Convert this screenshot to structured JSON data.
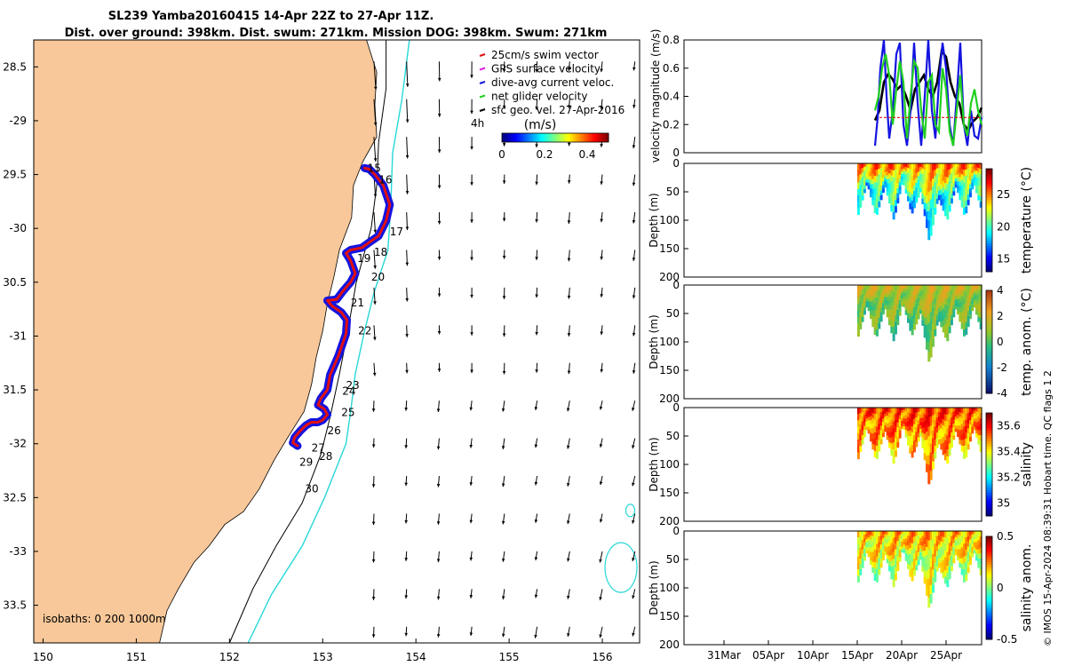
{
  "title": {
    "line1": "SL239 Yamba20160415 14-Apr 22Z to 27-Apr 11Z.",
    "line2": "Dist. over ground: 398km. Dist. swum: 271km. Mission DOG: 398km. Swum: 271km"
  },
  "credit": "© IMOS 15-Apr-2024 08:39:31 Hobart time. QC flags 1  2",
  "colors": {
    "land": "#f8c89a",
    "track_red": "#e01010",
    "track_blue": "#1414e0",
    "isobath_cyan": "#28d7d7",
    "arrow": "#000000"
  },
  "chart_data": [
    {
      "type": "map",
      "name": "glider track map",
      "xlim": [
        149.9,
        156.4
      ],
      "ylim": [
        -33.85,
        -28.25
      ],
      "xticks": [
        150,
        151,
        152,
        153,
        154,
        155,
        156
      ],
      "yticks": [
        -28.5,
        -29,
        -29.5,
        -30,
        -30.5,
        -31,
        -31.5,
        -32,
        -32.5,
        -33,
        -33.5
      ],
      "xtick_labels": [
        "150",
        "151",
        "152",
        "153",
        "154",
        "155",
        "156"
      ],
      "ytick_labels": [
        "28.5",
        "-29",
        "29.5",
        "-30",
        "30.5",
        "-31",
        "31.5",
        "-32",
        "32.5",
        "-33",
        "33.5"
      ],
      "legend": [
        {
          "label": "25cm/s swim vector",
          "color": "#e01010"
        },
        {
          "label": "GPS surface velocity",
          "color": "#e020e0"
        },
        {
          "label": "dive-avg current veloc.",
          "color": "#1414e0"
        },
        {
          "label": "net glider velocity",
          "color": "#20d020"
        },
        {
          "label": "sfc geo. vel. 27-Apr-2016",
          "color": "#000000"
        }
      ],
      "legend_extra": "4h",
      "colorbar": {
        "label": "(m/s)",
        "ticks": [
          0,
          0.2,
          0.4
        ],
        "tick_labels": [
          "0",
          "0.2",
          "0.4"
        ],
        "range": [
          0,
          0.5
        ]
      },
      "isobaths_label": "isobaths: 0   200  1000m",
      "day_markers": [
        {
          "day": "15",
          "lon": 153.48,
          "lat": -29.44
        },
        {
          "day": "16",
          "lon": 153.6,
          "lat": -29.55
        },
        {
          "day": "17",
          "lon": 153.72,
          "lat": -30.03
        },
        {
          "day": "18",
          "lon": 153.55,
          "lat": -30.22
        },
        {
          "day": "19",
          "lon": 153.37,
          "lat": -30.28
        },
        {
          "day": "20",
          "lon": 153.52,
          "lat": -30.45
        },
        {
          "day": "21",
          "lon": 153.3,
          "lat": -30.69
        },
        {
          "day": "22",
          "lon": 153.38,
          "lat": -30.95
        },
        {
          "day": "23",
          "lon": 153.25,
          "lat": -31.46
        },
        {
          "day": "24",
          "lon": 153.21,
          "lat": -31.51
        },
        {
          "day": "25",
          "lon": 153.2,
          "lat": -31.71
        },
        {
          "day": "26",
          "lon": 153.05,
          "lat": -31.88
        },
        {
          "day": "27",
          "lon": 152.88,
          "lat": -32.04
        },
        {
          "day": "28",
          "lon": 152.96,
          "lat": -32.12
        },
        {
          "day": "29",
          "lon": 152.75,
          "lat": -32.17
        },
        {
          "day": "30",
          "lon": 152.81,
          "lat": -32.42
        }
      ],
      "track": [
        [
          153.45,
          -29.44
        ],
        [
          153.5,
          -29.45
        ],
        [
          153.56,
          -29.5
        ],
        [
          153.65,
          -29.6
        ],
        [
          153.72,
          -29.78
        ],
        [
          153.68,
          -29.93
        ],
        [
          153.6,
          -30.07
        ],
        [
          153.5,
          -30.13
        ],
        [
          153.42,
          -30.18
        ],
        [
          153.3,
          -30.2
        ],
        [
          153.25,
          -30.23
        ],
        [
          153.3,
          -30.3
        ],
        [
          153.35,
          -30.42
        ],
        [
          153.3,
          -30.5
        ],
        [
          153.22,
          -30.58
        ],
        [
          153.15,
          -30.66
        ],
        [
          153.05,
          -30.67
        ],
        [
          153.1,
          -30.72
        ],
        [
          153.2,
          -30.78
        ],
        [
          153.26,
          -30.85
        ],
        [
          153.25,
          -30.98
        ],
        [
          153.17,
          -31.18
        ],
        [
          153.08,
          -31.36
        ],
        [
          153.05,
          -31.5
        ],
        [
          152.98,
          -31.58
        ],
        [
          152.95,
          -31.64
        ],
        [
          153.02,
          -31.68
        ],
        [
          153.05,
          -31.73
        ],
        [
          153.0,
          -31.78
        ],
        [
          152.95,
          -31.8
        ],
        [
          152.88,
          -31.8
        ],
        [
          152.82,
          -31.83
        ],
        [
          152.76,
          -31.88
        ],
        [
          152.7,
          -31.94
        ],
        [
          152.68,
          -31.99
        ],
        [
          152.73,
          -32.02
        ]
      ]
    },
    {
      "type": "line",
      "name": "velocity time series",
      "ylabel": "velocity magnitude (m/s)",
      "ylim": [
        0,
        0.8
      ],
      "yticks": [
        0,
        0.2,
        0.4,
        0.6,
        0.8
      ],
      "ytick_labels": [
        "0",
        "0.2",
        "0.4",
        "0.6",
        "0.8"
      ],
      "xlim_day": [
        -19.5,
        14.0
      ],
      "series": [
        {
          "name": "total speed",
          "color": "#000000",
          "x": [
            2.0,
            2.5,
            3.0,
            3.5,
            4.0,
            4.5,
            5.0,
            5.5,
            6.0,
            6.5,
            7.0,
            7.5,
            8.0,
            8.5,
            9.0,
            9.5,
            10.0,
            10.5,
            11.0,
            11.5,
            12.0,
            12.5,
            13.0,
            13.5,
            14.0
          ],
          "y": [
            0.23,
            0.3,
            0.5,
            0.56,
            0.52,
            0.45,
            0.48,
            0.4,
            0.3,
            0.45,
            0.5,
            0.55,
            0.45,
            0.4,
            0.5,
            0.72,
            0.68,
            0.5,
            0.4,
            0.35,
            0.2,
            0.16,
            0.22,
            0.25,
            0.32
          ]
        },
        {
          "name": "dive-avg current",
          "color": "#1414e0",
          "x": [
            2.0,
            2.3,
            2.6,
            3.0,
            3.3,
            3.6,
            4.0,
            4.4,
            4.8,
            5.2,
            5.6,
            6.0,
            6.4,
            6.8,
            7.2,
            7.6,
            8.0,
            8.4,
            8.8,
            9.2,
            9.6,
            10.0,
            10.4,
            10.8,
            11.2,
            11.6,
            12.0,
            12.4,
            12.8,
            13.2,
            13.6,
            14.0
          ],
          "y": [
            0.05,
            0.25,
            0.6,
            0.8,
            0.4,
            0.1,
            0.3,
            0.7,
            0.78,
            0.2,
            0.05,
            0.3,
            0.78,
            0.35,
            0.05,
            0.4,
            0.8,
            0.3,
            0.1,
            0.5,
            0.78,
            0.6,
            0.2,
            0.05,
            0.4,
            0.78,
            0.2,
            0.05,
            0.3,
            0.12,
            0.1,
            0.25
          ]
        },
        {
          "name": "net glider velocity",
          "color": "#20d020",
          "x": [
            2.0,
            2.4,
            2.8,
            3.2,
            3.6,
            4.0,
            4.4,
            4.8,
            5.2,
            5.6,
            6.0,
            6.4,
            6.8,
            7.2,
            7.6,
            8.0,
            8.4,
            8.8,
            9.2,
            9.6,
            10.0,
            10.4,
            10.8,
            11.2,
            11.6,
            12.0,
            12.4,
            12.8,
            13.2,
            13.6,
            14.0
          ],
          "y": [
            0.3,
            0.4,
            0.6,
            0.7,
            0.55,
            0.2,
            0.45,
            0.65,
            0.5,
            0.1,
            0.4,
            0.65,
            0.6,
            0.3,
            0.1,
            0.5,
            0.55,
            0.2,
            0.15,
            0.6,
            0.45,
            0.15,
            0.05,
            0.3,
            0.55,
            0.2,
            0.12,
            0.35,
            0.45,
            0.3,
            0.2
          ]
        },
        {
          "name": "swim vector",
          "color": "#e01010",
          "x": [
            2.5,
            14.0
          ],
          "y": [
            0.25,
            0.25
          ]
        }
      ]
    },
    {
      "type": "heatmap",
      "name": "temperature section",
      "colorbar_label": "temperature (°C)",
      "ylabel": "Depth (m)",
      "ylim": [
        200,
        0
      ],
      "yticks": [
        0,
        50,
        100,
        150,
        200
      ],
      "ytick_labels": [
        "0",
        "50",
        "100",
        "150",
        "200"
      ],
      "clim": [
        13,
        29
      ],
      "colorbar_ticks": [
        15,
        20,
        25
      ],
      "colorbar_tick_labels": [
        "15",
        "20",
        "25"
      ],
      "colorbar_flag": "",
      "profile_depths_m": [
        90,
        35,
        95,
        40,
        100,
        30,
        90,
        50,
        140,
        60,
        100,
        40,
        95,
        35,
        90
      ],
      "surface_value": 25,
      "deep_value": 18
    },
    {
      "type": "heatmap",
      "name": "temperature anomaly section",
      "colorbar_label": "temp. anom. (°C)",
      "ylabel": "Depth (m)",
      "ylim": [
        200,
        0
      ],
      "yticks": [
        0,
        50,
        100,
        150,
        200
      ],
      "ytick_labels": [
        "0",
        "50",
        "100",
        "150",
        "200"
      ],
      "clim": [
        -4,
        4
      ],
      "colorbar_ticks": [
        -4,
        -2,
        0,
        2,
        4
      ],
      "colorbar_tick_labels": [
        "-4",
        "-2",
        "0",
        "2",
        "4"
      ],
      "colorbar_flag": "",
      "profile_depths_m": [
        90,
        35,
        95,
        40,
        100,
        30,
        90,
        50,
        140,
        60,
        100,
        40,
        95,
        35,
        90
      ],
      "surface_value": 1.5,
      "deep_value": 0
    },
    {
      "type": "heatmap",
      "name": "salinity section",
      "colorbar_label": "salinity",
      "ylabel": "Depth (m)",
      "ylim": [
        200,
        0
      ],
      "yticks": [
        0,
        50,
        100,
        150,
        200
      ],
      "ytick_labels": [
        "0",
        "50",
        "100",
        "150",
        "200"
      ],
      "clim": [
        34.9,
        35.7
      ],
      "colorbar_ticks": [
        35,
        35.2,
        35.4,
        35.6
      ],
      "colorbar_tick_labels": [
        "35",
        "35.2",
        "35.4",
        "35.6"
      ],
      "colorbar_flag": "",
      "profile_depths_m": [
        90,
        35,
        95,
        40,
        100,
        30,
        90,
        50,
        140,
        60,
        100,
        40,
        95,
        35,
        90
      ],
      "surface_value": 35.55,
      "deep_value": 35.45
    },
    {
      "type": "heatmap",
      "name": "salinity anomaly section",
      "colorbar_label": "salinity anom.",
      "ylabel": "Depth (m)",
      "ylim": [
        200,
        0
      ],
      "yticks": [
        0,
        50,
        100,
        150,
        200
      ],
      "ytick_labels": [
        "0",
        "50",
        "100",
        "150",
        "200"
      ],
      "clim": [
        -0.5,
        0.5
      ],
      "colorbar_ticks": [
        -0.5,
        0,
        0.5
      ],
      "colorbar_tick_labels": [
        "-0.5",
        "0",
        "0.5"
      ],
      "colorbar_flag": "",
      "profile_depths_m": [
        90,
        35,
        95,
        40,
        100,
        30,
        90,
        50,
        140,
        60,
        100,
        40,
        95,
        35,
        90
      ],
      "surface_value": 0.2,
      "deep_value": 0.05
    },
    {
      "type": "time_axis",
      "name": "shared time axis",
      "tick_days": [
        -15,
        -10,
        -5,
        0,
        5,
        10
      ],
      "tick_labels": [
        "31Mar",
        "05Apr",
        "10Apr",
        "15Apr",
        "20Apr",
        "25Apr"
      ]
    }
  ]
}
